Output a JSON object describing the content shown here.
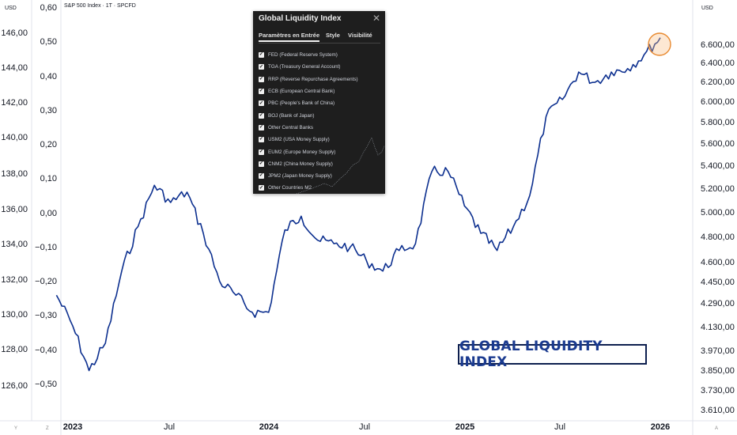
{
  "header": {
    "left_unit": "USD",
    "right_unit": "USD",
    "symbol": "S&P 500 Index · 1T · SPCFD"
  },
  "corner_labels": {
    "bottom_left": "Y",
    "bottom_mid": "Z",
    "bottom_right": "A"
  },
  "annotation": {
    "label": "GLOBAL LIQUIDITY INDEX"
  },
  "colors": {
    "line": "#0c2f8f",
    "box_border": "#0d1f4f",
    "box_text": "#1a3a8f",
    "highlight": "#e8892f",
    "panel_bg": "#1e1e1e"
  },
  "chart_data": {
    "type": "line",
    "x_ticks": [
      "2023",
      "Jul",
      "2024",
      "Jul",
      "2025",
      "Jul",
      "2026"
    ],
    "axis_left1": {
      "ticks": [
        "146,00",
        "144,00",
        "142,00",
        "140,00",
        "138,00",
        "136,00",
        "134,00",
        "132,00",
        "130,00",
        "128,00",
        "126,00"
      ],
      "range": [
        125.5,
        146.5
      ]
    },
    "axis_left2": {
      "ticks": [
        "0,60",
        "0,50",
        "0,40",
        "0,30",
        "0,20",
        "0,10",
        "0,00",
        "−0,10",
        "−0,20",
        "−0,30",
        "−0,40",
        "−0,50"
      ],
      "range": [
        -0.55,
        0.6
      ]
    },
    "axis_right": {
      "ticks": [
        "6.600,00",
        "6.400,00",
        "6.200,00",
        "6.000,00",
        "5.800,00",
        "5.600,00",
        "5.400,00",
        "5.200,00",
        "5.000,00",
        "4.800,00",
        "4.600,00",
        "4.450,00",
        "4.290,00",
        "4.130,00",
        "3.970,00",
        "3.850,00",
        "3.730,00",
        "3.610,00"
      ],
      "scale": "log"
    },
    "series": [
      {
        "x": [
          "2022-12",
          "2023-01",
          "2023-02",
          "2023-03",
          "2023-04",
          "2023-05",
          "2023-06",
          "2023-07",
          "2023-08",
          "2023-09",
          "2023-10",
          "2023-11",
          "2023-12",
          "2024-01",
          "2024-02",
          "2024-03",
          "2024-04",
          "2024-05",
          "2024-06",
          "2024-07",
          "2024-08",
          "2024-09",
          "2024-10",
          "2024-11",
          "2024-12",
          "2025-01",
          "2025-02",
          "2025-03",
          "2025-04",
          "2025-05",
          "2025-06",
          "2025-07",
          "2025-08",
          "2025-09",
          "2025-10",
          "2025-11",
          "2025-12",
          "2026-01"
        ],
        "y": [
          -0.24,
          -0.33,
          -0.46,
          -0.38,
          -0.17,
          -0.04,
          0.08,
          0.03,
          0.06,
          -0.06,
          -0.2,
          -0.24,
          -0.29,
          -0.29,
          -0.05,
          -0.01,
          -0.08,
          -0.09,
          -0.1,
          -0.14,
          -0.17,
          -0.11,
          -0.09,
          0.12,
          0.12,
          0.02,
          -0.06,
          -0.11,
          -0.04,
          0.05,
          0.28,
          0.33,
          0.41,
          0.38,
          0.41,
          0.42,
          0.46,
          0.51
        ]
      }
    ]
  },
  "dialog": {
    "title": "Global Liquidity Index",
    "close": "✕",
    "tabs": [
      "Paramètres en Entrée",
      "Style",
      "Visibilité"
    ],
    "items": [
      "FED (Federal Reserve System)",
      "TGA (Treasury General Account)",
      "RRP (Reverse Repurchase Agreements)",
      "ECB (European Central Bank)",
      "PBC (People's Bank of China)",
      "BOJ (Bank of Japan)",
      "Other Central Banks",
      "USM2 (USA Money Supply)",
      "EUM2 (Europe Money Supply)",
      "CNM2 (China Money Supply)",
      "JPM2 (Japan Money Supply)",
      "Other Countries M2"
    ]
  }
}
